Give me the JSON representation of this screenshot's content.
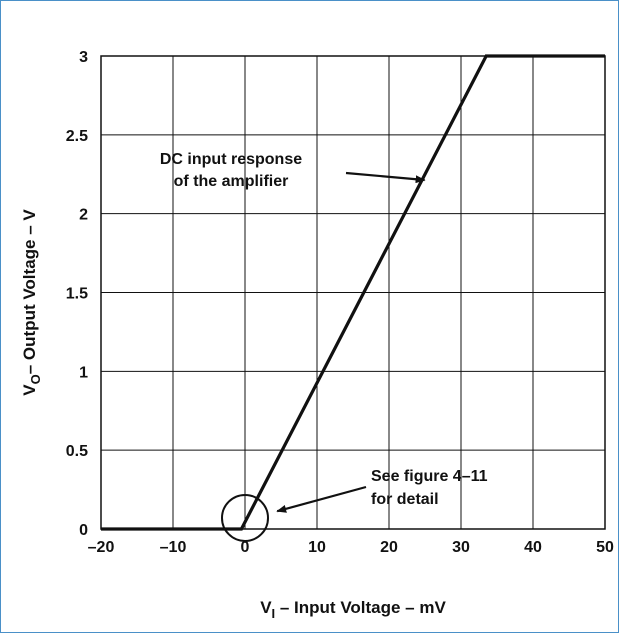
{
  "chart_data": {
    "type": "line",
    "title": "",
    "xlabel": {
      "main": "V",
      "sub": "I",
      "rest": " – Input Voltage – mV"
    },
    "ylabel": {
      "main": "V",
      "sub": "O",
      "rest": "– Output Voltage – V"
    },
    "xlim": [
      -20,
      50
    ],
    "ylim": [
      0,
      3
    ],
    "xticks": [
      -20,
      -10,
      0,
      10,
      20,
      30,
      40,
      50
    ],
    "xtick_labels": [
      "–20",
      "–10",
      "0",
      "10",
      "20",
      "30",
      "40",
      "50"
    ],
    "yticks": [
      0,
      0.5,
      1,
      1.5,
      2,
      2.5,
      3
    ],
    "ytick_labels": [
      "0",
      "0.5",
      "1",
      "1.5",
      "2",
      "2.5",
      "3"
    ],
    "grid": true,
    "series": [
      {
        "x": [
          -20,
          -0.5,
          33.5,
          50
        ],
        "y": [
          0,
          0,
          3,
          3
        ]
      }
    ],
    "annotations": [
      {
        "lines": [
          "DC input response",
          "of the amplifier"
        ],
        "point_to": [
          25.5,
          2.22
        ]
      },
      {
        "lines": [
          "See figure 4–11",
          "for detail"
        ],
        "circle_at": [
          0,
          0.07
        ],
        "point_to": [
          3.5,
          0.1
        ]
      }
    ],
    "colors": {
      "line": "#111111",
      "grid": "#111111",
      "frame": "#4a90c8"
    }
  }
}
